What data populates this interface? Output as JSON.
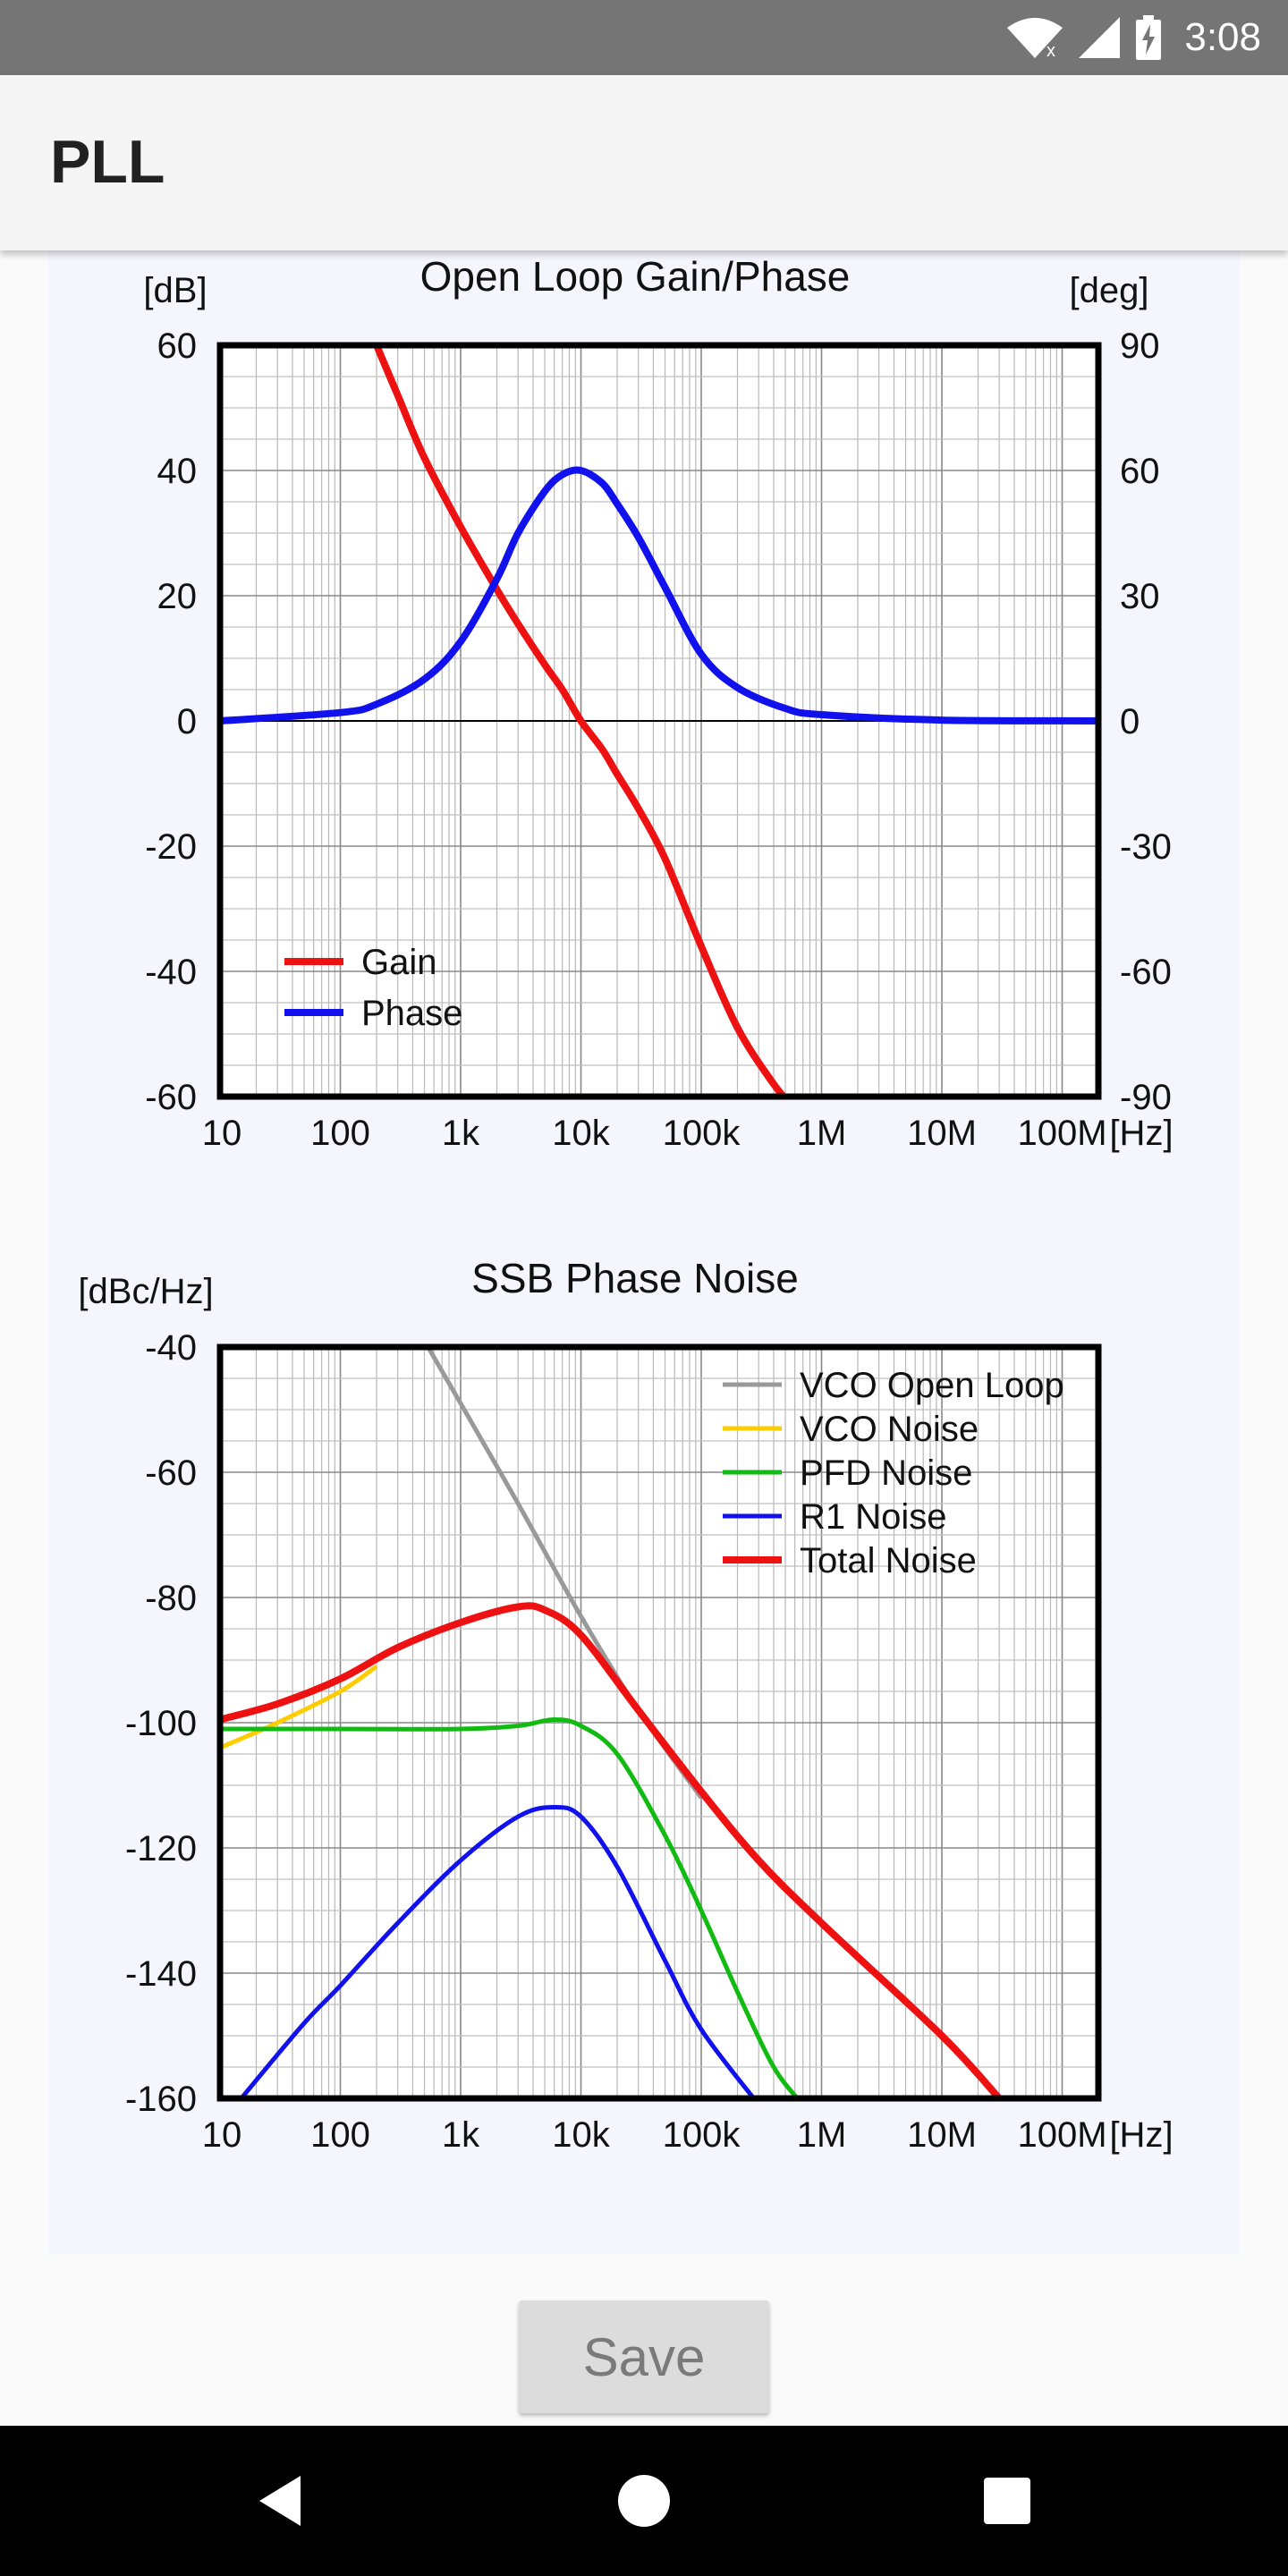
{
  "status_bar": {
    "time": "3:08"
  },
  "app": {
    "title": "PLL"
  },
  "save_button": {
    "label": "Save"
  },
  "x_tick_labels": [
    "10",
    "100",
    "1k",
    "10k",
    "100k",
    "1M",
    "10M",
    "100M"
  ],
  "x_unit": "[Hz]",
  "chart_data": [
    {
      "type": "line",
      "title": "Open Loop Gain/Phase",
      "xscale": "log",
      "xlim": [
        10,
        200000000
      ],
      "ylabel": "[dB]",
      "y2label": "[deg]",
      "ylim": [
        -60,
        60
      ],
      "y2lim": [
        -90,
        90
      ],
      "yticks": [
        "60",
        "40",
        "20",
        "0",
        "-20",
        "-40",
        "-60"
      ],
      "y2ticks": [
        "90",
        "60",
        "30",
        "0",
        "-30",
        "-60",
        "-90"
      ],
      "grid": true,
      "legend_position": "bottom-left",
      "series": [
        {
          "name": "Gain",
          "axis": "left",
          "color": "#ee1111",
          "x": [
            200,
            300,
            500,
            1000,
            2000,
            3000,
            5000,
            7000,
            10000,
            15000,
            20000,
            30000,
            50000,
            100000,
            200000,
            400000,
            600000
          ],
          "y": [
            60,
            52,
            42,
            31,
            21,
            15.5,
            9,
            5,
            0,
            -4.5,
            -8.5,
            -14,
            -22,
            -36,
            -49,
            -58,
            -62
          ]
        },
        {
          "name": "Phase",
          "axis": "right",
          "color": "#1111ee",
          "x": [
            10,
            100,
            200,
            500,
            1000,
            2000,
            3000,
            5000,
            7000,
            10000,
            15000,
            20000,
            30000,
            50000,
            100000,
            200000,
            500000,
            1000000,
            10000000,
            200000000
          ],
          "y": [
            0,
            2,
            4,
            10,
            19,
            34,
            45,
            55,
            59,
            60,
            57,
            52,
            44,
            32,
            16,
            8,
            3,
            1.5,
            0.2,
            0
          ]
        }
      ]
    },
    {
      "type": "line",
      "title": "SSB Phase Noise",
      "xscale": "log",
      "xlim": [
        10,
        200000000
      ],
      "ylabel": "[dBc/Hz]",
      "ylim": [
        -160,
        -40
      ],
      "yticks": [
        "-40",
        "-60",
        "-80",
        "-100",
        "-120",
        "-140",
        "-160"
      ],
      "grid": true,
      "legend_position": "top-right",
      "series": [
        {
          "name": "VCO Open Loop",
          "color": "#999999",
          "x": [
            500,
            1000,
            3000,
            10000,
            30000,
            100000
          ],
          "y": [
            -39,
            -49,
            -65,
            -83,
            -98,
            -112
          ]
        },
        {
          "name": "VCO Noise",
          "color": "#ffcc00",
          "x": [
            10,
            30,
            100,
            200
          ],
          "y": [
            -104,
            -100,
            -95,
            -91
          ]
        },
        {
          "name": "PFD Noise",
          "color": "#11bb11",
          "x": [
            10,
            100,
            1000,
            3000,
            6000,
            10000,
            20000,
            50000,
            100000,
            200000,
            400000,
            700000
          ],
          "y": [
            -101,
            -101,
            -101,
            -100.5,
            -99.5,
            -100.5,
            -105,
            -118,
            -130,
            -143,
            -155,
            -161
          ]
        },
        {
          "name": "R1 Noise",
          "color": "#1111ee",
          "x": [
            15,
            50,
            100,
            300,
            1000,
            3000,
            6000,
            10000,
            20000,
            50000,
            100000,
            300000
          ],
          "y": [
            -160,
            -148,
            -142,
            -132,
            -122,
            -115,
            -113.5,
            -115,
            -123,
            -138,
            -149,
            -161
          ]
        },
        {
          "name": "Total Noise",
          "color": "#ee1111",
          "x": [
            10,
            30,
            100,
            300,
            1000,
            3000,
            5000,
            10000,
            30000,
            100000,
            300000,
            1000000,
            10000000,
            30000000
          ],
          "y": [
            -99.5,
            -97,
            -93,
            -88,
            -84,
            -81.5,
            -82,
            -86,
            -98,
            -111,
            -122,
            -132,
            -150,
            -160
          ]
        }
      ]
    }
  ]
}
